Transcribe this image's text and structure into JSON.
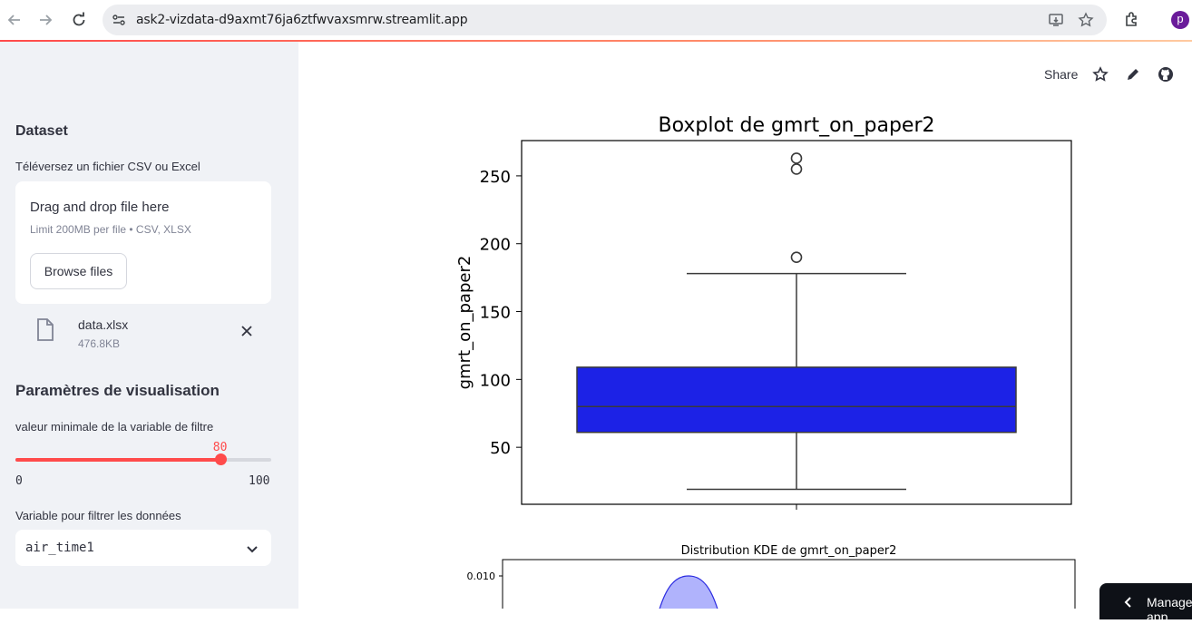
{
  "browser": {
    "url": "ask2-vizdata-d9axmt76ja6ztfwvaxsmrw.streamlit.app",
    "profile_initial": "p",
    "profile_color": "#6a1b9a"
  },
  "sidebar": {
    "dataset_heading": "Dataset",
    "upload_label": "Téléversez un fichier CSV ou Excel",
    "dropzone_title": "Drag and drop file here",
    "dropzone_limit": "Limit 200MB per file • CSV, XLSX",
    "browse_label": "Browse files",
    "file_name": "data.xlsx",
    "file_size": "476.8KB",
    "params_heading": "Paramètres de visualisation",
    "slider_label": "valeur minimale de la variable de filtre",
    "slider_value": "80",
    "slider_fraction": 0.8,
    "slider_min": "0",
    "slider_max": "100",
    "select_label": "Variable pour filtrer les données",
    "select_value": "air_time1"
  },
  "toolbar": {
    "share_label": "Share"
  },
  "chart_data": [
    {
      "type": "box",
      "title": "Boxplot de gmrt_on_paper2",
      "xlabel": "",
      "ylabel": "gmrt_on_paper2",
      "ylim": [
        8,
        276
      ],
      "yticks": [
        50,
        100,
        150,
        200,
        250
      ],
      "box": {
        "min": 19,
        "q1": 61,
        "median": 80,
        "q3": 109,
        "max": 178
      },
      "outliers": [
        190,
        255,
        263
      ],
      "color": "#1c22e6"
    },
    {
      "type": "area",
      "title": "Distribution KDE de gmrt_on_paper2",
      "yticks": [
        0.01
      ],
      "ytick_labels": [
        "0.010"
      ],
      "peak": 0.01,
      "color": "#b0b3fc"
    }
  ],
  "manage_label": "Manage app"
}
